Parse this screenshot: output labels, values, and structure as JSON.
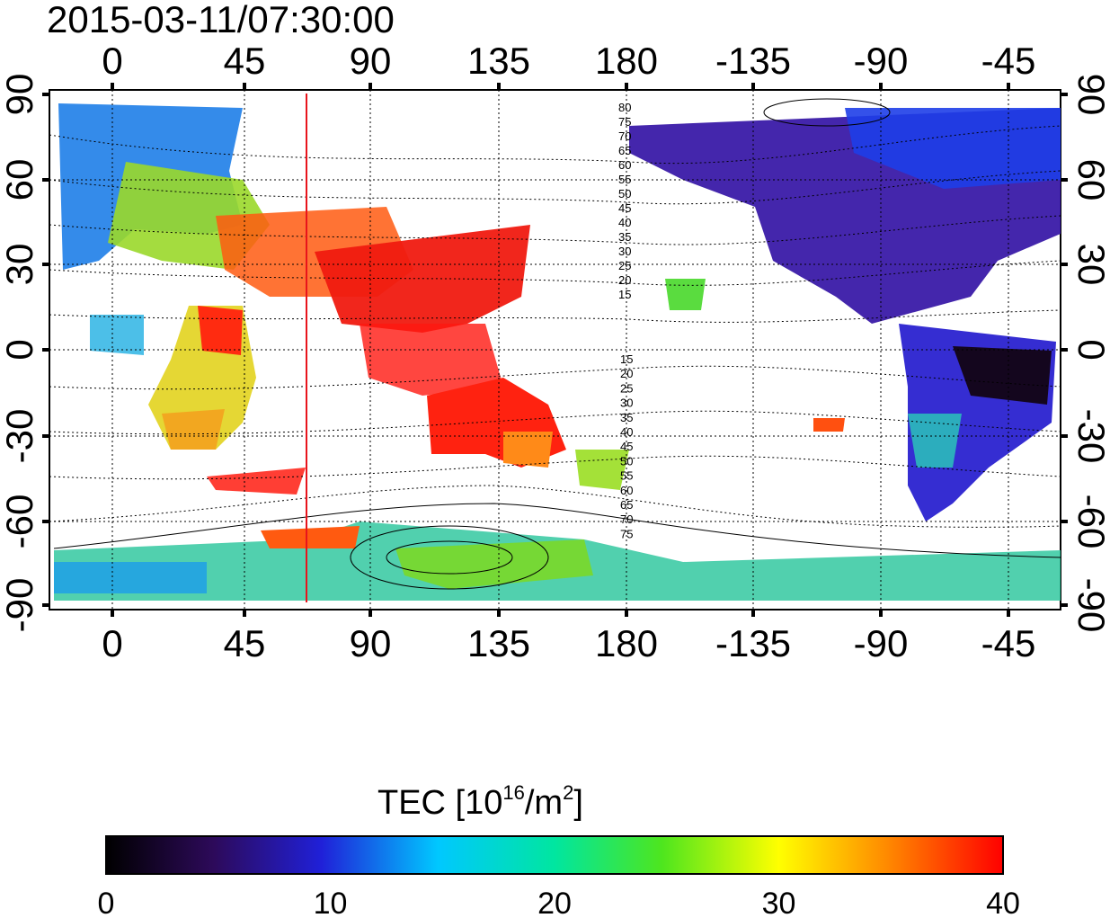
{
  "title": "2015-03-11/07:30:00",
  "map": {
    "top_lon_ticks": [
      "0",
      "45",
      "90",
      "135",
      "180",
      "-135",
      "-90",
      "-45"
    ],
    "bottom_lon_ticks": [
      "0",
      "45",
      "90",
      "135",
      "180",
      "-135",
      "-90",
      "-45"
    ],
    "left_lat_ticks": [
      "90",
      "60",
      "30",
      "0",
      "-30",
      "-60",
      "-90"
    ],
    "right_lat_ticks": [
      "90",
      "60",
      "30",
      "0",
      "-30",
      "-60",
      "-90"
    ],
    "contour_labels_north": [
      "80",
      "75",
      "70",
      "65",
      "60",
      "55",
      "50",
      "45",
      "40",
      "35",
      "30",
      "25",
      "20",
      "15"
    ],
    "contour_labels_south": [
      "15",
      "20",
      "25",
      "30",
      "35",
      "40",
      "45",
      "50",
      "55",
      "60",
      "65",
      "70",
      "75"
    ],
    "terminator_lon": 68,
    "terminator_color": "#e8141c"
  },
  "colorbar": {
    "label_prefix": "TEC  [10",
    "label_sup1": "16",
    "label_mid": "/m",
    "label_sup2": "2",
    "label_suffix": "]",
    "ticks": [
      "0",
      "10",
      "20",
      "30",
      "40"
    ],
    "min": 0,
    "max": 40,
    "colors": [
      "#000000",
      "#3a0a6e",
      "#1c1cff",
      "#00e6ff",
      "#19e619",
      "#ffff00",
      "#ff8c00",
      "#ff0000"
    ]
  }
}
